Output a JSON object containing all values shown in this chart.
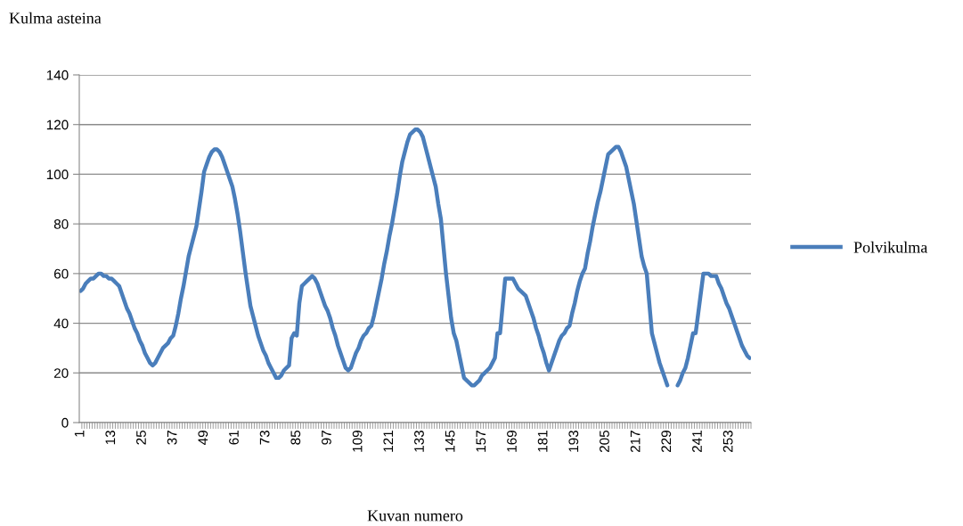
{
  "chart_data": {
    "type": "line",
    "xlabel": "Kuvan numero",
    "ylabel": "Kulma asteina",
    "categories": [
      "1",
      null,
      null,
      null,
      null,
      null,
      null,
      null,
      null,
      null,
      null,
      null,
      "13",
      null,
      null,
      null,
      null,
      null,
      null,
      null,
      null,
      null,
      null,
      null,
      "25",
      null,
      null,
      null,
      null,
      null,
      null,
      null,
      null,
      null,
      null,
      null,
      "37",
      null,
      null,
      null,
      null,
      null,
      null,
      null,
      null,
      null,
      null,
      null,
      "49",
      null,
      null,
      null,
      null,
      null,
      null,
      null,
      null,
      null,
      null,
      null,
      "61",
      null,
      null,
      null,
      null,
      null,
      null,
      null,
      null,
      null,
      null,
      null,
      "73",
      null,
      null,
      null,
      null,
      null,
      null,
      null,
      null,
      null,
      null,
      null,
      "85",
      null,
      null,
      null,
      null,
      null,
      null,
      null,
      null,
      null,
      null,
      null,
      "97",
      null,
      null,
      null,
      null,
      null,
      null,
      null,
      null,
      null,
      null,
      null,
      "109",
      null,
      null,
      null,
      null,
      null,
      null,
      null,
      null,
      null,
      null,
      null,
      "121",
      null,
      null,
      null,
      null,
      null,
      null,
      null,
      null,
      null,
      null,
      null,
      "133",
      null,
      null,
      null,
      null,
      null,
      null,
      null,
      null,
      null,
      null,
      null,
      "145",
      null,
      null,
      null,
      null,
      null,
      null,
      null,
      null,
      null,
      null,
      null,
      "157",
      null,
      null,
      null,
      null,
      null,
      null,
      null,
      null,
      null,
      null,
      null,
      "169",
      null,
      null,
      null,
      null,
      null,
      null,
      null,
      null,
      null,
      null,
      null,
      "181",
      null,
      null,
      null,
      null,
      null,
      null,
      null,
      null,
      null,
      null,
      null,
      "193",
      null,
      null,
      null,
      null,
      null,
      null,
      null,
      null,
      null,
      null,
      null,
      "205",
      null,
      null,
      null,
      null,
      null,
      null,
      null,
      null,
      null,
      null,
      null,
      "217",
      null,
      null,
      null,
      null,
      null,
      null,
      null,
      null,
      null,
      null,
      null,
      "229",
      null,
      null,
      null,
      null,
      null,
      null,
      null,
      null,
      null,
      null,
      null,
      "241",
      null,
      null,
      null,
      null,
      null,
      null,
      null,
      null,
      null,
      null,
      null,
      "253",
      null,
      null,
      null,
      null,
      null,
      null,
      null,
      null
    ],
    "series": [
      {
        "name": "Polvikulma",
        "color": "#4a7ebb",
        "values": [
          53,
          54,
          56,
          57,
          58,
          58,
          59,
          60,
          60,
          59,
          59,
          58,
          58,
          57,
          56,
          55,
          52,
          49,
          46,
          44,
          41,
          38,
          36,
          33,
          31,
          28,
          26,
          24,
          23,
          24,
          26,
          28,
          30,
          31,
          32,
          34,
          35,
          39,
          44,
          50,
          55,
          61,
          67,
          71,
          75,
          79,
          86,
          93,
          101,
          104,
          107,
          109,
          110,
          110,
          109,
          107,
          104,
          101,
          98,
          95,
          90,
          84,
          77,
          69,
          61,
          54,
          47,
          43,
          39,
          35,
          32,
          29,
          27,
          24,
          22,
          20,
          18,
          18,
          19,
          21,
          22,
          23,
          34,
          36,
          35,
          48,
          55,
          56,
          57,
          58,
          59,
          58,
          56,
          53,
          50,
          47,
          45,
          42,
          38,
          35,
          31,
          28,
          25,
          22,
          21,
          22,
          25,
          28,
          30,
          33,
          35,
          36,
          38,
          39,
          43,
          48,
          53,
          58,
          64,
          69,
          75,
          80,
          86,
          92,
          99,
          105,
          109,
          113,
          116,
          117,
          118,
          118,
          117,
          115,
          111,
          107,
          103,
          99,
          95,
          88,
          82,
          71,
          60,
          51,
          42,
          36,
          33,
          28,
          23,
          18,
          17,
          16,
          15,
          15,
          16,
          17,
          19,
          20,
          21,
          22,
          24,
          26,
          36,
          36,
          47,
          58,
          58,
          58,
          58,
          56,
          54,
          53,
          52,
          51,
          48,
          45,
          42,
          38,
          35,
          31,
          28,
          24,
          21,
          24,
          27,
          30,
          33,
          35,
          36,
          38,
          39,
          44,
          48,
          53,
          57,
          60,
          62,
          68,
          73,
          79,
          84,
          89,
          93,
          98,
          103,
          108,
          109,
          110,
          111,
          111,
          109,
          106,
          103,
          98,
          93,
          88,
          81,
          74,
          67,
          63,
          60,
          48,
          36,
          32,
          28,
          24,
          21,
          18,
          15,
          null,
          null,
          null,
          15,
          17,
          20,
          22,
          26,
          31,
          36,
          36,
          44,
          52,
          60,
          60,
          60,
          59,
          59,
          59,
          56,
          54,
          51,
          48,
          46,
          43,
          40,
          37,
          34,
          31,
          29,
          27,
          26
        ]
      }
    ],
    "ylim": [
      0,
      140
    ],
    "yticks": [
      0,
      20,
      40,
      60,
      80,
      100,
      120,
      140
    ],
    "grid": "y",
    "legend": "right",
    "marker": "none",
    "line_style": "solid"
  }
}
